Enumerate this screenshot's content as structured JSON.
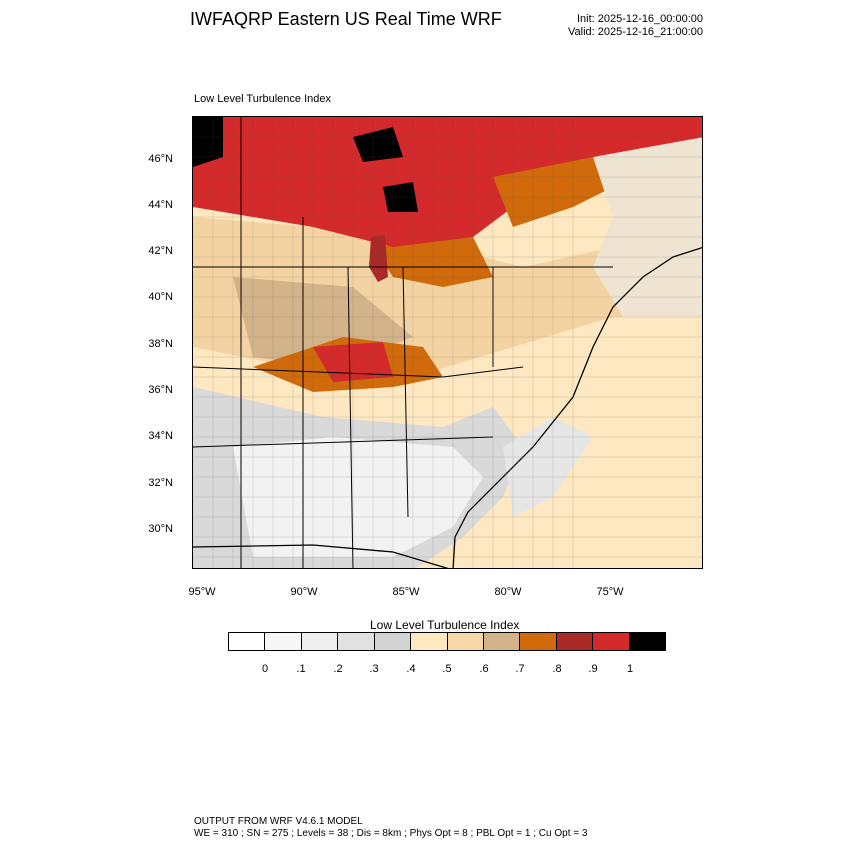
{
  "header": {
    "title": "IWFAQRP Eastern US Real Time WRF",
    "init": "Init: 2025-12-16_00:00:00",
    "valid": "Valid: 2025-12-16_21:00:00"
  },
  "panel": {
    "title": "Low Level Turbulence Index"
  },
  "axes": {
    "lat_labels": [
      "46°N",
      "44°N",
      "42°N",
      "40°N",
      "38°N",
      "36°N",
      "34°N",
      "32°N",
      "30°N"
    ],
    "lon_labels": [
      "95°W",
      "90°W",
      "85°W",
      "80°W",
      "75°W"
    ]
  },
  "colorbar": {
    "title": "Low Level Turbulence Index",
    "colors": [
      "#ffffff",
      "#f7f7f7",
      "#efefef",
      "#e1e1e1",
      "#d3d3d3",
      "#fde8c1",
      "#f7d7a7",
      "#d3b48a",
      "#d06a0a",
      "#aa2a27",
      "#d42a2b",
      "#000000"
    ],
    "tick_labels": [
      "0",
      ".1",
      ".2",
      ".3",
      ".4",
      ".5",
      ".6",
      ".7",
      ".8",
      ".9",
      "1"
    ]
  },
  "footer": {
    "line1": "OUTPUT FROM WRF V4.6.1 MODEL",
    "line2": "WE = 310 ; SN = 275 ; Levels = 38 ; Dis = 8km ; Phys Opt = 8 ; PBL Opt = 1 ; Cu Opt = 3"
  }
}
